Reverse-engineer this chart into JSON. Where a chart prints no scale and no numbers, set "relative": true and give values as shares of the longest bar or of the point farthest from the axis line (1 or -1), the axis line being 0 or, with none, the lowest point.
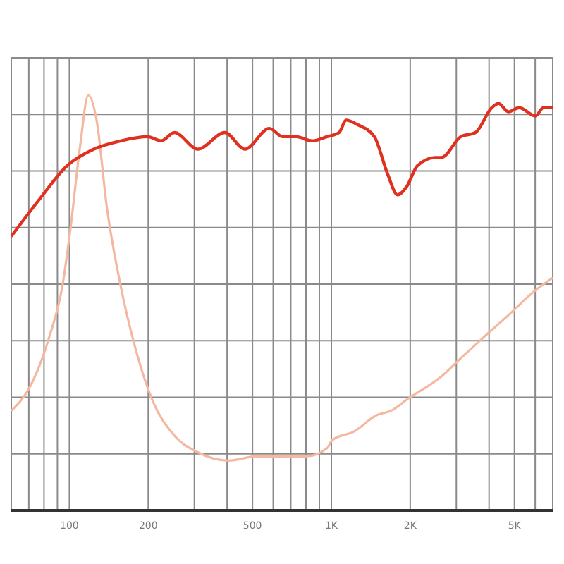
{
  "chart_data": {
    "type": "line",
    "relative": true,
    "log": "x",
    "grid": true,
    "marker": "none",
    "line_style": "solid",
    "xlim": [
      60,
      7000
    ],
    "xticks": [
      {
        "value": 60,
        "label": null
      },
      {
        "value": 70,
        "label": null
      },
      {
        "value": 80,
        "label": null
      },
      {
        "value": 90,
        "label": null
      },
      100,
      200,
      {
        "value": 300,
        "label": null
      },
      {
        "value": 400,
        "label": null
      },
      500,
      {
        "value": 600,
        "label": null
      },
      {
        "value": 700,
        "label": null
      },
      {
        "value": 800,
        "label": null
      },
      {
        "value": 900,
        "label": null
      },
      {
        "value": 1000,
        "label": "1K"
      },
      {
        "value": 2000,
        "label": "2K"
      },
      {
        "value": 3000,
        "label": null
      },
      {
        "value": 4000,
        "label": null
      },
      {
        "value": 5000,
        "label": "5K"
      },
      {
        "value": 6000,
        "label": null
      },
      {
        "value": 7000,
        "label": null
      }
    ],
    "series": [
      {
        "color": "#e03020",
        "x": [
          60,
          77,
          98,
          124,
          157,
          199,
          224,
          252,
          309,
          392,
          468,
          580,
          653,
          735,
          844,
          963,
          1070,
          1140,
          1250,
          1460,
          1640,
          1790,
          1940,
          2130,
          2490,
          2630,
          3120,
          3550,
          4100,
          4350,
          4740,
          5210,
          6010,
          6450,
          7000
        ],
        "values": [
          0.66,
          0.75,
          0.83,
          0.87,
          0.89,
          0.9,
          0.89,
          0.91,
          0.87,
          0.91,
          0.87,
          0.92,
          0.9,
          0.9,
          0.89,
          0.9,
          0.91,
          0.94,
          0.93,
          0.9,
          0.81,
          0.76,
          0.78,
          0.83,
          0.85,
          0.85,
          0.9,
          0.91,
          0.97,
          0.98,
          0.96,
          0.97,
          0.95,
          0.97,
          0.97
        ]
      },
      {
        "color": "#f4b8a0",
        "x": [
          60,
          71,
          84,
          94,
          101,
          110,
          118,
          127,
          139,
          157,
          177,
          206,
          252,
          309,
          406,
          515,
          653,
          798,
          963,
          1010,
          1220,
          1496,
          1690,
          1970,
          2600,
          3160,
          3860,
          4740,
          6010,
          7000
        ],
        "values": [
          0.24,
          0.3,
          0.42,
          0.54,
          0.68,
          0.88,
          1,
          0.94,
          0.73,
          0.54,
          0.4,
          0.27,
          0.18,
          0.14,
          0.12,
          0.13,
          0.13,
          0.13,
          0.15,
          0.17,
          0.19,
          0.23,
          0.24,
          0.27,
          0.32,
          0.37,
          0.42,
          0.47,
          0.53,
          0.56
        ]
      }
    ]
  }
}
